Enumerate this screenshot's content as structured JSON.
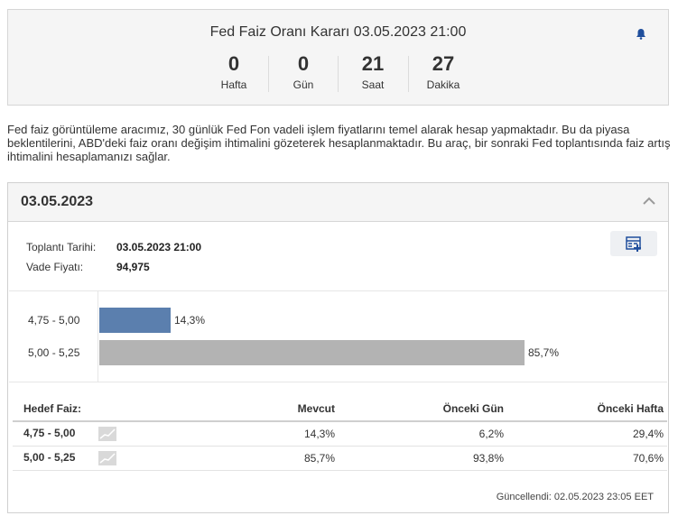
{
  "countdown": {
    "title": "Fed Faiz Oranı Kararı 03.05.2023 21:00",
    "units": [
      {
        "value": "0",
        "label": "Hafta"
      },
      {
        "value": "0",
        "label": "Gün"
      },
      {
        "value": "21",
        "label": "Saat"
      },
      {
        "value": "27",
        "label": "Dakika"
      }
    ]
  },
  "description": "Fed faiz görüntüleme aracımız, 30 günlük Fed Fon vadeli işlem fiyatlarını temel alarak hesap yapmaktadır. Bu da piyasa beklentilerini, ABD'deki faiz oranı değişim ihtimalini gözeterek hesaplanmaktadır. Bu araç, bir sonraki Fed toplantısında faiz artış ihtimalini hesaplamanızı sağlar.",
  "panel": {
    "date": "03.05.2023",
    "meeting_label": "Toplantı Tarihi:",
    "meeting_value": "03.05.2023 21:00",
    "futures_label": "Vade Fiyatı:",
    "futures_value": "94,975"
  },
  "chart_data": {
    "type": "bar",
    "orientation": "horizontal",
    "categories": [
      "4,75 - 5,00",
      "5,00 - 5,25"
    ],
    "values": [
      14.3,
      85.7
    ],
    "value_labels": [
      "14,3%",
      "85,7%"
    ],
    "colors": [
      "#5b7fae",
      "#b3b3b3"
    ],
    "xlim": [
      0,
      100
    ]
  },
  "table": {
    "headers": [
      "Hedef Faiz:",
      "Mevcut",
      "Önceki Gün",
      "Önceki Hafta"
    ],
    "rows": [
      {
        "range": "4,75 - 5,00",
        "current": "14,3%",
        "prev_day": "6,2%",
        "prev_week": "29,4%"
      },
      {
        "range": "5,00 - 5,25",
        "current": "85,7%",
        "prev_day": "93,8%",
        "prev_week": "70,6%"
      }
    ]
  },
  "updated": "Güncellendi: 02.05.2023 23:05 EET",
  "icons": [
    "bell-icon",
    "chevron-up-icon",
    "calculator-icon",
    "sparkline-icon"
  ],
  "colors": {
    "accent": "#1f4e9c",
    "bar_primary": "#5b7fae",
    "bar_secondary": "#b3b3b3"
  }
}
